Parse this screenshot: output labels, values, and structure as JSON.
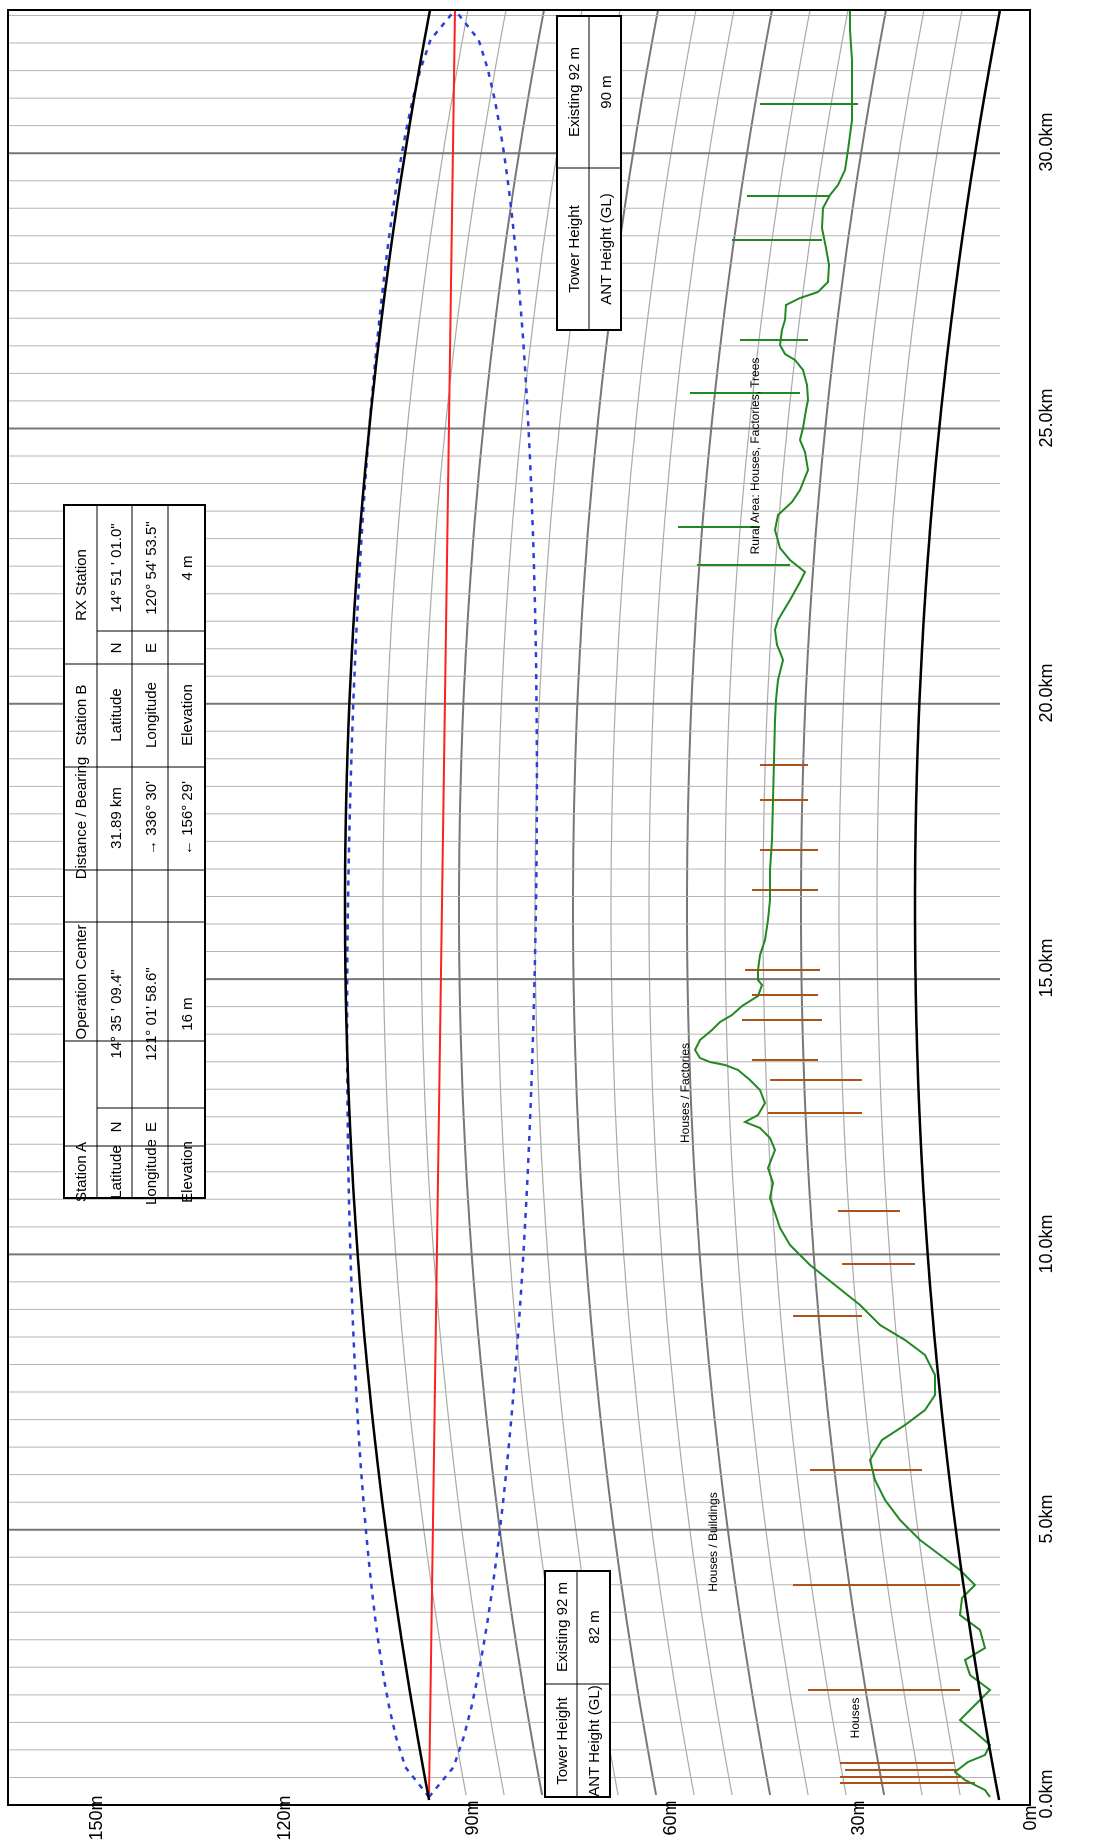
{
  "axis": {
    "distance_ticks": [
      "0.0km",
      "5.0km",
      "10.0km",
      "15.0km",
      "20.0km",
      "25.0km",
      "30.0km"
    ],
    "height_ticks": [
      "0m",
      "30m",
      "60m",
      "90m",
      "120m",
      "150m"
    ]
  },
  "station_table": {
    "header": [
      "Station A",
      "Operation Center",
      "Distance / Bearing",
      "Station B",
      "RX Station"
    ],
    "rows": [
      [
        "Latitude",
        "N",
        "14° 35 ' 09.4\"",
        "31.89 km",
        "Latitude",
        "N",
        "14° 51 ' 01.0\""
      ],
      [
        "Longitude",
        "E",
        "121° 01' 58.6\"",
        "→ 336° 30'",
        "Longitude",
        "E",
        "120° 54' 53.5\""
      ],
      [
        "Elevation",
        "",
        "16 m",
        "← 156° 29'",
        "Elevation",
        "",
        "4 m"
      ]
    ]
  },
  "tower_a": {
    "tower_label": "Tower Height",
    "tower_value": "Existing 92 m",
    "ant_label": "ANT Height (GL)",
    "ant_value": "82 m"
  },
  "tower_b": {
    "tower_label": "Tower Height",
    "tower_value": "Existing 92 m",
    "ant_label": "ANT Height (GL)",
    "ant_value": "90 m"
  },
  "annotations": {
    "houses": "Houses",
    "houses_buildings": "Houses / Buildings",
    "houses_factories": "Houses / Factories",
    "rural": "Rural Area: Houses, Factories, Trees"
  },
  "colors": {
    "terrain": "#228822",
    "obstruction": "#b0501a",
    "los": "#ff2020",
    "fresnel": "#2b3fd8",
    "grid_major": "#777777",
    "grid_minor": "#aaaaaa"
  }
}
